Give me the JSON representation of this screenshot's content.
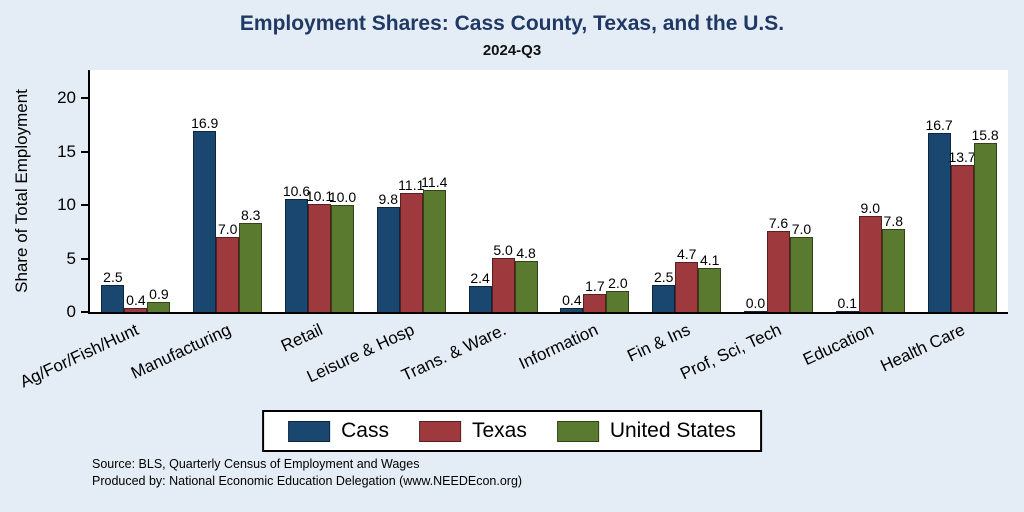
{
  "title": "Employment Shares: Cass County, Texas, and the U.S.",
  "subtitle": "2024-Q3",
  "ylabel": "Share of Total Employment",
  "source": {
    "line1": "Source: BLS, Quarterly Census of Employment and Wages",
    "line2": "Produced by: National Economic Education Delegation (www.NEEDEcon.org)"
  },
  "colors": {
    "background": "#e4edf5",
    "plot_background": "#ffffff",
    "title_text": "#1f3864"
  },
  "chart_data": {
    "type": "bar",
    "title": "Employment Shares: Cass County, Texas, and the U.S.",
    "subtitle": "2024-Q3",
    "xlabel": "",
    "ylabel": "Share of Total Employment",
    "ylim": [
      0,
      20
    ],
    "yticks": [
      0,
      5,
      10,
      15,
      20
    ],
    "grid": false,
    "legend_position": "bottom",
    "categories": [
      "Ag/For/Fish/Hunt",
      "Manufacturing",
      "Retail",
      "Leisure & Hosp",
      "Trans. & Ware.",
      "Information",
      "Fin & Ins",
      "Prof, Sci, Tech",
      "Education",
      "Health Care"
    ],
    "series": [
      {
        "name": "Cass",
        "color": "#1a476f",
        "values": [
          2.5,
          16.9,
          10.6,
          9.8,
          2.4,
          0.4,
          2.5,
          0.0,
          0.1,
          16.7
        ]
      },
      {
        "name": "Texas",
        "color": "#9e3a3e",
        "values": [
          0.4,
          7.0,
          10.1,
          11.1,
          5.0,
          1.7,
          4.7,
          7.6,
          9.0,
          13.7
        ]
      },
      {
        "name": "United States",
        "color": "#5a7a2f",
        "values": [
          0.9,
          8.3,
          10.0,
          11.4,
          4.8,
          2.0,
          4.1,
          7.0,
          7.8,
          15.8
        ]
      }
    ]
  }
}
